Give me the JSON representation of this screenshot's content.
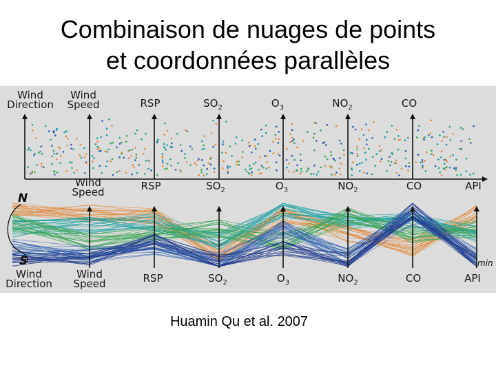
{
  "title": {
    "line1": "Combinaison de nuages de points",
    "line2": "et coordonnées parallèles"
  },
  "caption": "Huamin Qu et al. 2007",
  "figure": {
    "top_labels": [
      {
        "name": "top-label-wind-direction",
        "lines": [
          "Wind",
          "Direction"
        ]
      },
      {
        "name": "top-label-wind-speed",
        "lines": [
          "Wind",
          "Speed"
        ]
      },
      {
        "name": "top-label-rsp",
        "lines": [
          "RSP"
        ]
      },
      {
        "name": "top-label-so2",
        "lines": [
          "SO"
        ],
        "sub": "2"
      },
      {
        "name": "top-label-o3",
        "lines": [
          "O"
        ],
        "sub": "3"
      },
      {
        "name": "top-label-no2",
        "lines": [
          "NO"
        ],
        "sub": "2"
      },
      {
        "name": "top-label-co",
        "lines": [
          "CO"
        ]
      }
    ],
    "mid_labels": [
      {
        "name": "mid-label-wind-speed",
        "lines": [
          "Wind",
          "Speed"
        ]
      },
      {
        "name": "mid-label-rsp",
        "lines": [
          "RSP"
        ]
      },
      {
        "name": "mid-label-so2",
        "lines": [
          "SO"
        ],
        "sub": "2"
      },
      {
        "name": "mid-label-o3",
        "lines": [
          "O"
        ],
        "sub": "3"
      },
      {
        "name": "mid-label-no2",
        "lines": [
          "NO"
        ],
        "sub": "2"
      },
      {
        "name": "mid-label-co",
        "lines": [
          "CO"
        ]
      },
      {
        "name": "mid-label-api",
        "lines": [
          "API"
        ]
      }
    ],
    "bottom_labels": [
      {
        "name": "bottom-label-wind-direction",
        "lines": [
          "Wind",
          "Direction"
        ]
      },
      {
        "name": "bottom-label-wind-speed",
        "lines": [
          "Wind",
          "Speed"
        ]
      },
      {
        "name": "bottom-label-rsp",
        "lines": [
          "RSP"
        ]
      },
      {
        "name": "bottom-label-so2",
        "lines": [
          "SO"
        ],
        "sub": "2"
      },
      {
        "name": "bottom-label-o3",
        "lines": [
          "O"
        ],
        "sub": "3"
      },
      {
        "name": "bottom-label-no2",
        "lines": [
          "NO"
        ],
        "sub": "2"
      },
      {
        "name": "bottom-label-co",
        "lines": [
          "CO"
        ]
      },
      {
        "name": "bottom-label-api",
        "lines": [
          "API"
        ]
      }
    ],
    "compass_north": "N",
    "compass_south": "S",
    "min_label": "min",
    "colors": {
      "background": "#dcdcdc",
      "axis": "#111111",
      "orange": "#e08a3c",
      "teal": "#1aa0a0",
      "green": "#3aa655",
      "blue": "#2d5fb0",
      "navy": "#223a8c"
    }
  }
}
